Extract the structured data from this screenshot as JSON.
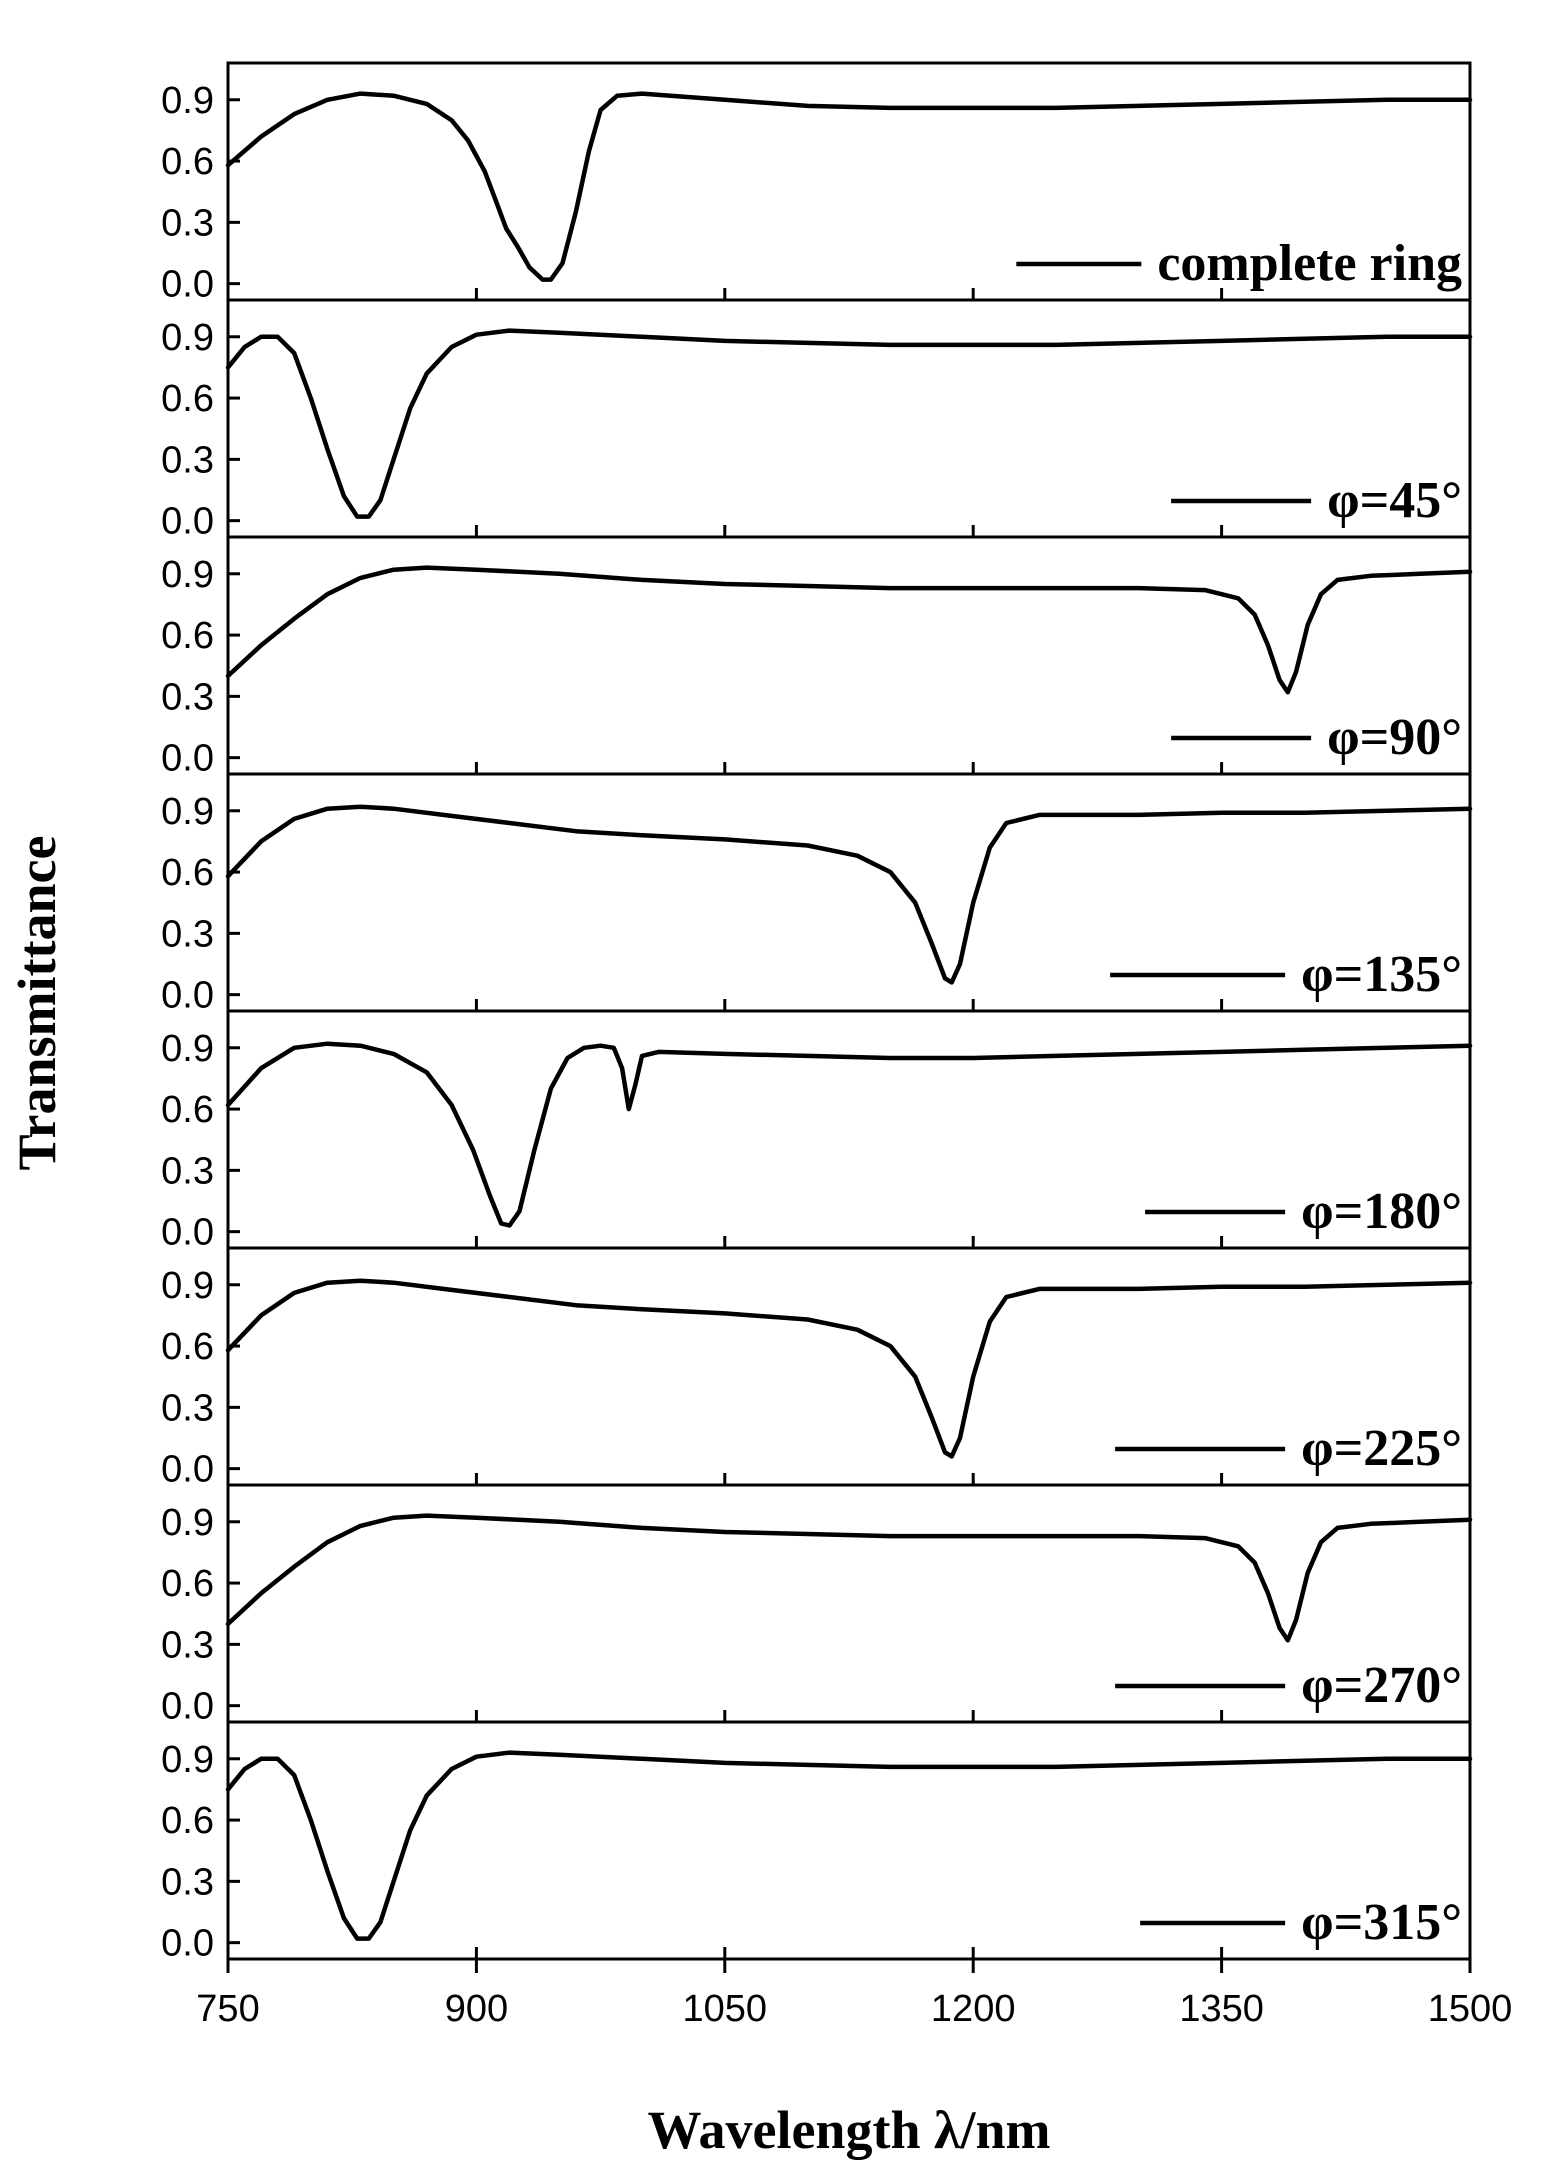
{
  "chart_data": {
    "type": "line",
    "xlabel": "Wavelength λ/nm",
    "ylabel": "Transmittance",
    "xlim": [
      750,
      1500
    ],
    "xticks": [
      750,
      900,
      1050,
      1200,
      1350,
      1500
    ],
    "ylim": [
      -0.08,
      1.08
    ],
    "yticks": [
      "0.0",
      "0.3",
      "0.6",
      "0.9"
    ],
    "grid": false,
    "legend_position": "bottom-right",
    "panels": [
      {
        "name": "complete ring",
        "points": [
          [
            750,
            0.58
          ],
          [
            770,
            0.72
          ],
          [
            790,
            0.83
          ],
          [
            810,
            0.9
          ],
          [
            830,
            0.93
          ],
          [
            850,
            0.92
          ],
          [
            870,
            0.88
          ],
          [
            885,
            0.8
          ],
          [
            895,
            0.7
          ],
          [
            905,
            0.55
          ],
          [
            912,
            0.4
          ],
          [
            918,
            0.27
          ],
          [
            925,
            0.18
          ],
          [
            932,
            0.08
          ],
          [
            940,
            0.02
          ],
          [
            945,
            0.02
          ],
          [
            952,
            0.1
          ],
          [
            960,
            0.35
          ],
          [
            968,
            0.65
          ],
          [
            975,
            0.85
          ],
          [
            985,
            0.92
          ],
          [
            1000,
            0.93
          ],
          [
            1050,
            0.9
          ],
          [
            1100,
            0.87
          ],
          [
            1150,
            0.86
          ],
          [
            1200,
            0.86
          ],
          [
            1250,
            0.86
          ],
          [
            1300,
            0.87
          ],
          [
            1350,
            0.88
          ],
          [
            1400,
            0.89
          ],
          [
            1450,
            0.9
          ],
          [
            1500,
            0.9
          ]
        ]
      },
      {
        "name": "φ=45°",
        "points": [
          [
            750,
            0.75
          ],
          [
            760,
            0.85
          ],
          [
            770,
            0.9
          ],
          [
            780,
            0.9
          ],
          [
            790,
            0.82
          ],
          [
            800,
            0.6
          ],
          [
            810,
            0.35
          ],
          [
            820,
            0.12
          ],
          [
            828,
            0.02
          ],
          [
            835,
            0.02
          ],
          [
            842,
            0.1
          ],
          [
            850,
            0.3
          ],
          [
            860,
            0.55
          ],
          [
            870,
            0.72
          ],
          [
            885,
            0.85
          ],
          [
            900,
            0.91
          ],
          [
            920,
            0.93
          ],
          [
            950,
            0.92
          ],
          [
            1000,
            0.9
          ],
          [
            1050,
            0.88
          ],
          [
            1100,
            0.87
          ],
          [
            1150,
            0.86
          ],
          [
            1200,
            0.86
          ],
          [
            1250,
            0.86
          ],
          [
            1300,
            0.87
          ],
          [
            1350,
            0.88
          ],
          [
            1400,
            0.89
          ],
          [
            1450,
            0.9
          ],
          [
            1500,
            0.9
          ]
        ]
      },
      {
        "name": "φ=90°",
        "points": [
          [
            750,
            0.4
          ],
          [
            770,
            0.55
          ],
          [
            790,
            0.68
          ],
          [
            810,
            0.8
          ],
          [
            830,
            0.88
          ],
          [
            850,
            0.92
          ],
          [
            870,
            0.93
          ],
          [
            900,
            0.92
          ],
          [
            950,
            0.9
          ],
          [
            1000,
            0.87
          ],
          [
            1050,
            0.85
          ],
          [
            1100,
            0.84
          ],
          [
            1150,
            0.83
          ],
          [
            1200,
            0.83
          ],
          [
            1250,
            0.83
          ],
          [
            1300,
            0.83
          ],
          [
            1340,
            0.82
          ],
          [
            1360,
            0.78
          ],
          [
            1370,
            0.7
          ],
          [
            1378,
            0.55
          ],
          [
            1385,
            0.38
          ],
          [
            1390,
            0.32
          ],
          [
            1395,
            0.42
          ],
          [
            1402,
            0.65
          ],
          [
            1410,
            0.8
          ],
          [
            1420,
            0.87
          ],
          [
            1440,
            0.89
          ],
          [
            1470,
            0.9
          ],
          [
            1500,
            0.91
          ]
        ]
      },
      {
        "name": "φ=135°",
        "points": [
          [
            750,
            0.58
          ],
          [
            770,
            0.75
          ],
          [
            790,
            0.86
          ],
          [
            810,
            0.91
          ],
          [
            830,
            0.92
          ],
          [
            850,
            0.91
          ],
          [
            880,
            0.88
          ],
          [
            920,
            0.84
          ],
          [
            960,
            0.8
          ],
          [
            1000,
            0.78
          ],
          [
            1050,
            0.76
          ],
          [
            1100,
            0.73
          ],
          [
            1130,
            0.68
          ],
          [
            1150,
            0.6
          ],
          [
            1165,
            0.45
          ],
          [
            1175,
            0.25
          ],
          [
            1183,
            0.08
          ],
          [
            1187,
            0.06
          ],
          [
            1192,
            0.15
          ],
          [
            1200,
            0.45
          ],
          [
            1210,
            0.72
          ],
          [
            1220,
            0.84
          ],
          [
            1240,
            0.88
          ],
          [
            1300,
            0.88
          ],
          [
            1350,
            0.89
          ],
          [
            1400,
            0.89
          ],
          [
            1450,
            0.9
          ],
          [
            1500,
            0.91
          ]
        ]
      },
      {
        "name": "φ=180°",
        "points": [
          [
            750,
            0.62
          ],
          [
            770,
            0.8
          ],
          [
            790,
            0.9
          ],
          [
            810,
            0.92
          ],
          [
            830,
            0.91
          ],
          [
            850,
            0.87
          ],
          [
            870,
            0.78
          ],
          [
            885,
            0.62
          ],
          [
            898,
            0.4
          ],
          [
            908,
            0.18
          ],
          [
            915,
            0.04
          ],
          [
            920,
            0.03
          ],
          [
            926,
            0.1
          ],
          [
            935,
            0.4
          ],
          [
            945,
            0.7
          ],
          [
            955,
            0.85
          ],
          [
            965,
            0.9
          ],
          [
            975,
            0.91
          ],
          [
            983,
            0.9
          ],
          [
            988,
            0.8
          ],
          [
            992,
            0.6
          ],
          [
            996,
            0.72
          ],
          [
            1000,
            0.86
          ],
          [
            1010,
            0.88
          ],
          [
            1050,
            0.87
          ],
          [
            1100,
            0.86
          ],
          [
            1150,
            0.85
          ],
          [
            1200,
            0.85
          ],
          [
            1250,
            0.86
          ],
          [
            1300,
            0.87
          ],
          [
            1350,
            0.88
          ],
          [
            1400,
            0.89
          ],
          [
            1450,
            0.9
          ],
          [
            1500,
            0.91
          ]
        ]
      },
      {
        "name": "φ=225°",
        "points": [
          [
            750,
            0.58
          ],
          [
            770,
            0.75
          ],
          [
            790,
            0.86
          ],
          [
            810,
            0.91
          ],
          [
            830,
            0.92
          ],
          [
            850,
            0.91
          ],
          [
            880,
            0.88
          ],
          [
            920,
            0.84
          ],
          [
            960,
            0.8
          ],
          [
            1000,
            0.78
          ],
          [
            1050,
            0.76
          ],
          [
            1100,
            0.73
          ],
          [
            1130,
            0.68
          ],
          [
            1150,
            0.6
          ],
          [
            1165,
            0.45
          ],
          [
            1175,
            0.25
          ],
          [
            1183,
            0.08
          ],
          [
            1187,
            0.06
          ],
          [
            1192,
            0.15
          ],
          [
            1200,
            0.45
          ],
          [
            1210,
            0.72
          ],
          [
            1220,
            0.84
          ],
          [
            1240,
            0.88
          ],
          [
            1300,
            0.88
          ],
          [
            1350,
            0.89
          ],
          [
            1400,
            0.89
          ],
          [
            1450,
            0.9
          ],
          [
            1500,
            0.91
          ]
        ]
      },
      {
        "name": "φ=270°",
        "points": [
          [
            750,
            0.4
          ],
          [
            770,
            0.55
          ],
          [
            790,
            0.68
          ],
          [
            810,
            0.8
          ],
          [
            830,
            0.88
          ],
          [
            850,
            0.92
          ],
          [
            870,
            0.93
          ],
          [
            900,
            0.92
          ],
          [
            950,
            0.9
          ],
          [
            1000,
            0.87
          ],
          [
            1050,
            0.85
          ],
          [
            1100,
            0.84
          ],
          [
            1150,
            0.83
          ],
          [
            1200,
            0.83
          ],
          [
            1250,
            0.83
          ],
          [
            1300,
            0.83
          ],
          [
            1340,
            0.82
          ],
          [
            1360,
            0.78
          ],
          [
            1370,
            0.7
          ],
          [
            1378,
            0.55
          ],
          [
            1385,
            0.38
          ],
          [
            1390,
            0.32
          ],
          [
            1395,
            0.42
          ],
          [
            1402,
            0.65
          ],
          [
            1410,
            0.8
          ],
          [
            1420,
            0.87
          ],
          [
            1440,
            0.89
          ],
          [
            1470,
            0.9
          ],
          [
            1500,
            0.91
          ]
        ]
      },
      {
        "name": "φ=315°",
        "points": [
          [
            750,
            0.75
          ],
          [
            760,
            0.85
          ],
          [
            770,
            0.9
          ],
          [
            780,
            0.9
          ],
          [
            790,
            0.82
          ],
          [
            800,
            0.6
          ],
          [
            810,
            0.35
          ],
          [
            820,
            0.12
          ],
          [
            828,
            0.02
          ],
          [
            835,
            0.02
          ],
          [
            842,
            0.1
          ],
          [
            850,
            0.3
          ],
          [
            860,
            0.55
          ],
          [
            870,
            0.72
          ],
          [
            885,
            0.85
          ],
          [
            900,
            0.91
          ],
          [
            920,
            0.93
          ],
          [
            950,
            0.92
          ],
          [
            1000,
            0.9
          ],
          [
            1050,
            0.88
          ],
          [
            1100,
            0.87
          ],
          [
            1150,
            0.86
          ],
          [
            1200,
            0.86
          ],
          [
            1250,
            0.86
          ],
          [
            1300,
            0.87
          ],
          [
            1350,
            0.88
          ],
          [
            1400,
            0.89
          ],
          [
            1450,
            0.9
          ],
          [
            1500,
            0.9
          ]
        ]
      }
    ]
  }
}
